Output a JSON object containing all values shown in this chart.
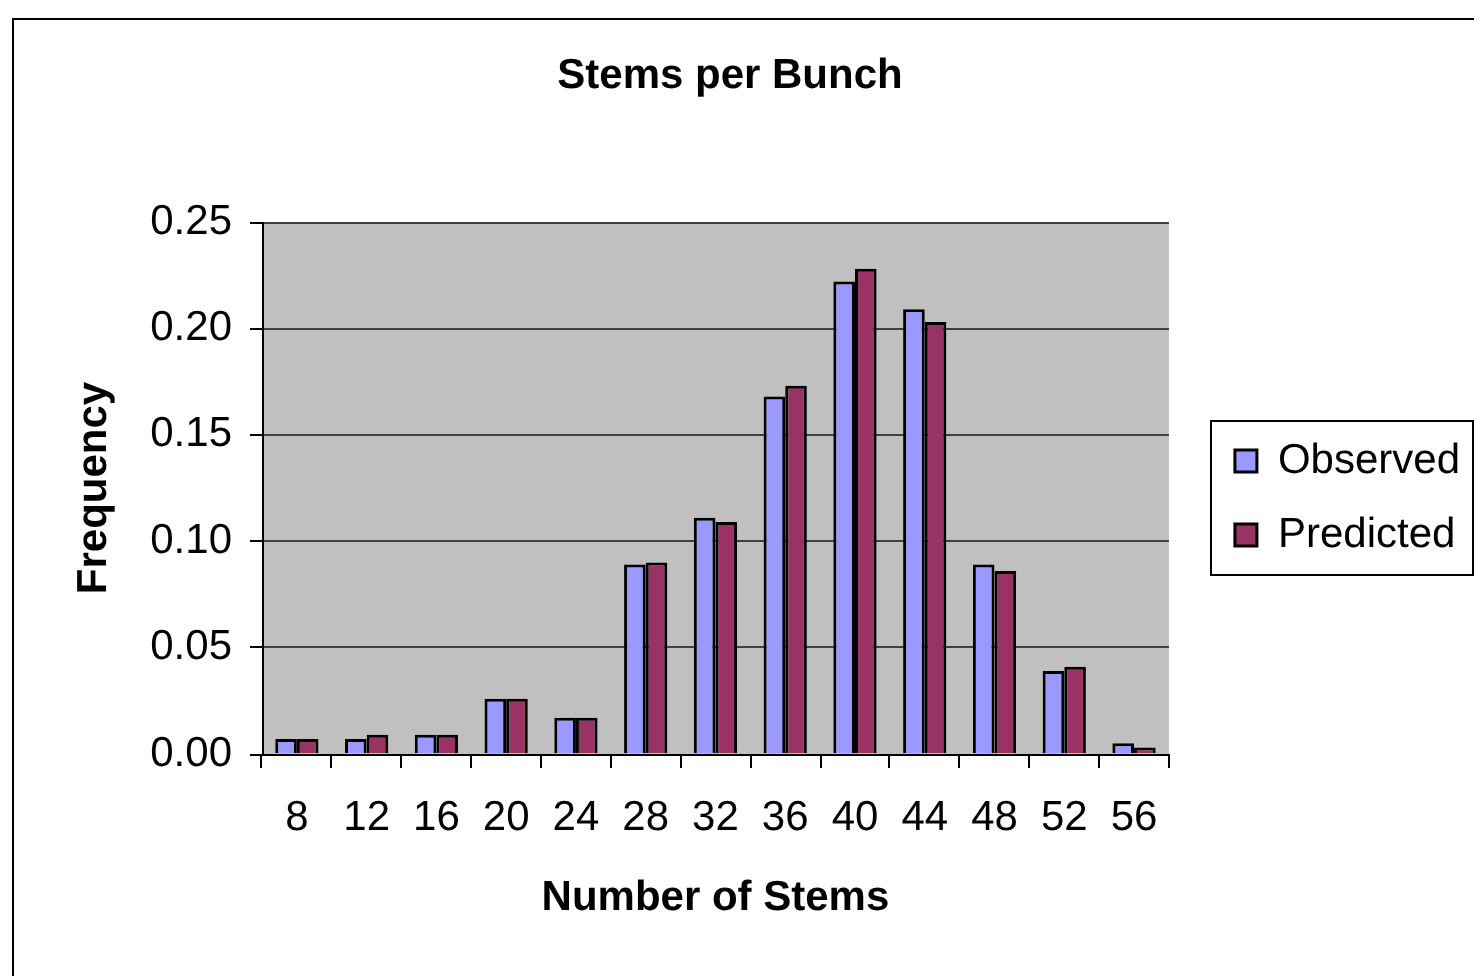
{
  "chart_data": {
    "type": "bar",
    "title": "Stems per Bunch",
    "xlabel": "Number of Stems",
    "ylabel": "Frequency",
    "categories": [
      "8",
      "12",
      "16",
      "20",
      "24",
      "28",
      "32",
      "36",
      "40",
      "44",
      "48",
      "52",
      "56"
    ],
    "series": [
      {
        "name": "Observed",
        "color": "#9999ff",
        "values": [
          0.007,
          0.007,
          0.009,
          0.026,
          0.017,
          0.089,
          0.111,
          0.168,
          0.222,
          0.209,
          0.089,
          0.039,
          0.005
        ]
      },
      {
        "name": "Predicted",
        "color": "#993366",
        "values": [
          0.007,
          0.009,
          0.009,
          0.026,
          0.017,
          0.09,
          0.109,
          0.173,
          0.228,
          0.203,
          0.086,
          0.041,
          0.003
        ]
      }
    ],
    "ylim": [
      0,
      0.25
    ],
    "yticks": [
      {
        "value": 0,
        "label": "0.00"
      },
      0.05,
      {
        "value": 0.1,
        "label": "0.10"
      },
      0.15,
      {
        "value": 0.2,
        "label": "0.20"
      },
      0.25
    ],
    "grid": "y",
    "legend": "right"
  }
}
